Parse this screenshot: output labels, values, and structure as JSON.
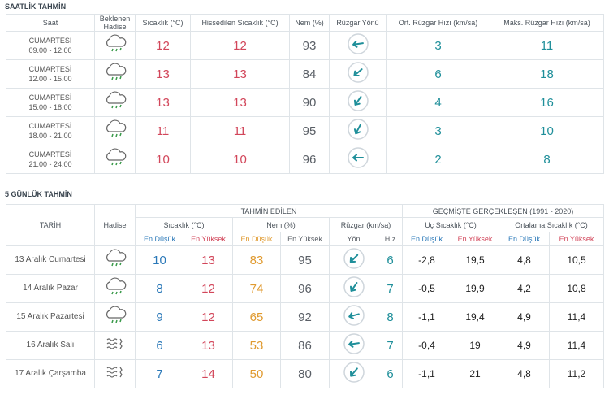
{
  "hourly": {
    "title": "SAATLİK TAHMİN",
    "headers": [
      "Saat",
      "Beklenen Hadise",
      "Sıcaklık (°C)",
      "Hissedilen Sıcaklık (°C)",
      "Nem (%)",
      "Rüzgar Yönü",
      "Ort. Rüzgar Hızı (km/sa)",
      "Maks. Rüzgar Hızı (km/sa)"
    ],
    "rows": [
      {
        "day": "CUMARTESİ",
        "time": "09.00 - 12.00",
        "temp": 12,
        "feels": 12,
        "humidity": 93,
        "avg_wind": 3,
        "max_wind": 11
      },
      {
        "day": "CUMARTESİ",
        "time": "12.00 - 15.00",
        "temp": 13,
        "feels": 13,
        "humidity": 84,
        "avg_wind": 6,
        "max_wind": 18
      },
      {
        "day": "CUMARTESİ",
        "time": "15.00 - 18.00",
        "temp": 13,
        "feels": 13,
        "humidity": 90,
        "avg_wind": 4,
        "max_wind": 16
      },
      {
        "day": "CUMARTESİ",
        "time": "18.00 - 21.00",
        "temp": 11,
        "feels": 11,
        "humidity": 95,
        "avg_wind": 3,
        "max_wind": 10
      },
      {
        "day": "CUMARTESİ",
        "time": "21.00 - 24.00",
        "temp": 10,
        "feels": 10,
        "humidity": 96,
        "avg_wind": 2,
        "max_wind": 8
      }
    ]
  },
  "daily": {
    "title": "5 GÜNLÜK TAHMİN",
    "date_header": "TARİH",
    "icon_header": "Hadise",
    "forecast_header": "TAHMİN EDİLEN",
    "history_header": "GEÇMİŞTE GERÇEKLEŞEN (1991 - 2020)",
    "group_headers": [
      "Sıcaklık (°C)",
      "Nem (%)",
      "Rüzgar (km/sa)",
      "Uç Sıcaklık (°C)",
      "Ortalama Sıcaklık (°C)"
    ],
    "sub_headers": [
      "En Düşük",
      "En Yüksek",
      "En Düşük",
      "En Yüksek",
      "Yön",
      "Hız",
      "En Düşük",
      "En Yüksek",
      "En Düşük",
      "En Yüksek"
    ],
    "rows": [
      {
        "date": "13 Aralık Cumartesi",
        "temp_min": 10,
        "temp_max": 13,
        "hum_min": 83,
        "hum_max": 95,
        "wind": 6,
        "ext_min": "-2,8",
        "ext_max": "19,5",
        "avg_min": "4,8",
        "avg_max": "10,5"
      },
      {
        "date": "14 Aralık Pazar",
        "temp_min": 8,
        "temp_max": 12,
        "hum_min": 74,
        "hum_max": 96,
        "wind": 7,
        "ext_min": "-0,5",
        "ext_max": "19,9",
        "avg_min": "4,2",
        "avg_max": "10,8"
      },
      {
        "date": "15 Aralık Pazartesi",
        "temp_min": 9,
        "temp_max": 12,
        "hum_min": 65,
        "hum_max": 92,
        "wind": 8,
        "ext_min": "-1,1",
        "ext_max": "19,4",
        "avg_min": "4,9",
        "avg_max": "11,4"
      },
      {
        "date": "16 Aralık Salı",
        "temp_min": 6,
        "temp_max": 13,
        "hum_min": 53,
        "hum_max": 86,
        "wind": 7,
        "ext_min": "-0,4",
        "ext_max": "19",
        "avg_min": "4,9",
        "avg_max": "11,4"
      },
      {
        "date": "17 Aralık Çarşamba",
        "temp_min": 7,
        "temp_max": 14,
        "hum_min": 50,
        "hum_max": 80,
        "wind": 6,
        "ext_min": "-1,1",
        "ext_max": "21",
        "avg_min": "4,8",
        "avg_max": "11,2"
      }
    ]
  }
}
